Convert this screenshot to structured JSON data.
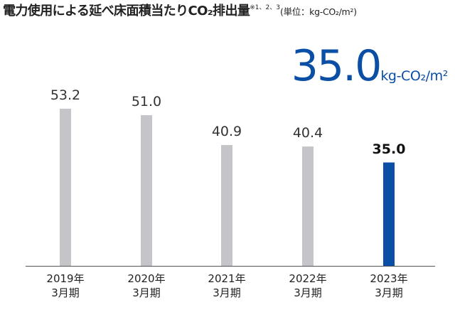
{
  "title": {
    "main": "電力使用による延べ床面積当たりCO₂排出量",
    "note": "※1、2、3",
    "unit": "(単位：kg-CO₂/m²)"
  },
  "highlight": {
    "value": "35.0",
    "unit": "kg-CO₂/m²"
  },
  "colors": {
    "bar": "#c4c4c9",
    "highlight_bar": "#0a4ea6",
    "axis": "#555555"
  },
  "chart_data": {
    "type": "bar",
    "categories": [
      {
        "year": "2019年",
        "period": "3月期"
      },
      {
        "year": "2020年",
        "period": "3月期"
      },
      {
        "year": "2021年",
        "period": "3月期"
      },
      {
        "year": "2022年",
        "period": "3月期"
      },
      {
        "year": "2023年",
        "period": "3月期"
      }
    ],
    "values": [
      53.2,
      51.0,
      40.9,
      40.4,
      35.0
    ],
    "value_labels": [
      "53.2",
      "51.0",
      "40.9",
      "40.4",
      "35.0"
    ],
    "highlight_index": 4,
    "ylim": [
      0,
      61.6
    ],
    "grid": false,
    "legend": "none"
  }
}
